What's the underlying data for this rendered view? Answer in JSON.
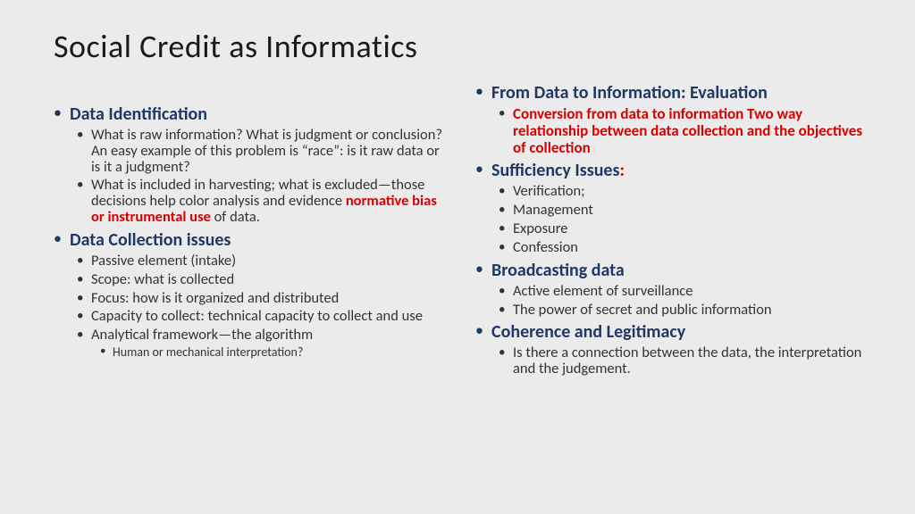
{
  "title": "Social Credit as Informatics",
  "left": {
    "s1": {
      "heading": "Data Identification",
      "b1": "What is raw information? What is judgment or conclusion? An easy example of this problem is “race”: is it raw data or is it a judgment?",
      "b2a": "What is included in harvesting; what is excluded—those decisions help color analysis and evidence ",
      "b2b": "normative bias or instrumental use",
      "b2c": " of data."
    },
    "s2": {
      "heading": "Data Collection issues",
      "b1": "Passive element (intake)",
      "b2": "Scope: what is collected",
      "b3": "Focus: how is it organized and distributed",
      "b4": "Capacity to collect: technical capacity to collect and use",
      "b5": "Analytical framework—the algorithm",
      "b5a": "Human or mechanical interpretation?"
    }
  },
  "right": {
    "s1": {
      "heading": "From Data to Information: Evaluation",
      "sub": "Conversion from data to information Two way relationship between data collection and the objectives of collection"
    },
    "s2": {
      "heading": "Sufficiency Issues",
      "colon": ":",
      "b1": "Verification;",
      "b2": "Management",
      "b3": "Exposure",
      "b4": "Confession"
    },
    "s3": {
      "heading": "Broadcasting data",
      "b1": "Active element of surveillance",
      "b2": "The power of secret and public information"
    },
    "s4": {
      "heading": "Coherence and Legitimacy",
      "b1": "Is there a connection between the data, the interpretation and the judgement."
    }
  }
}
